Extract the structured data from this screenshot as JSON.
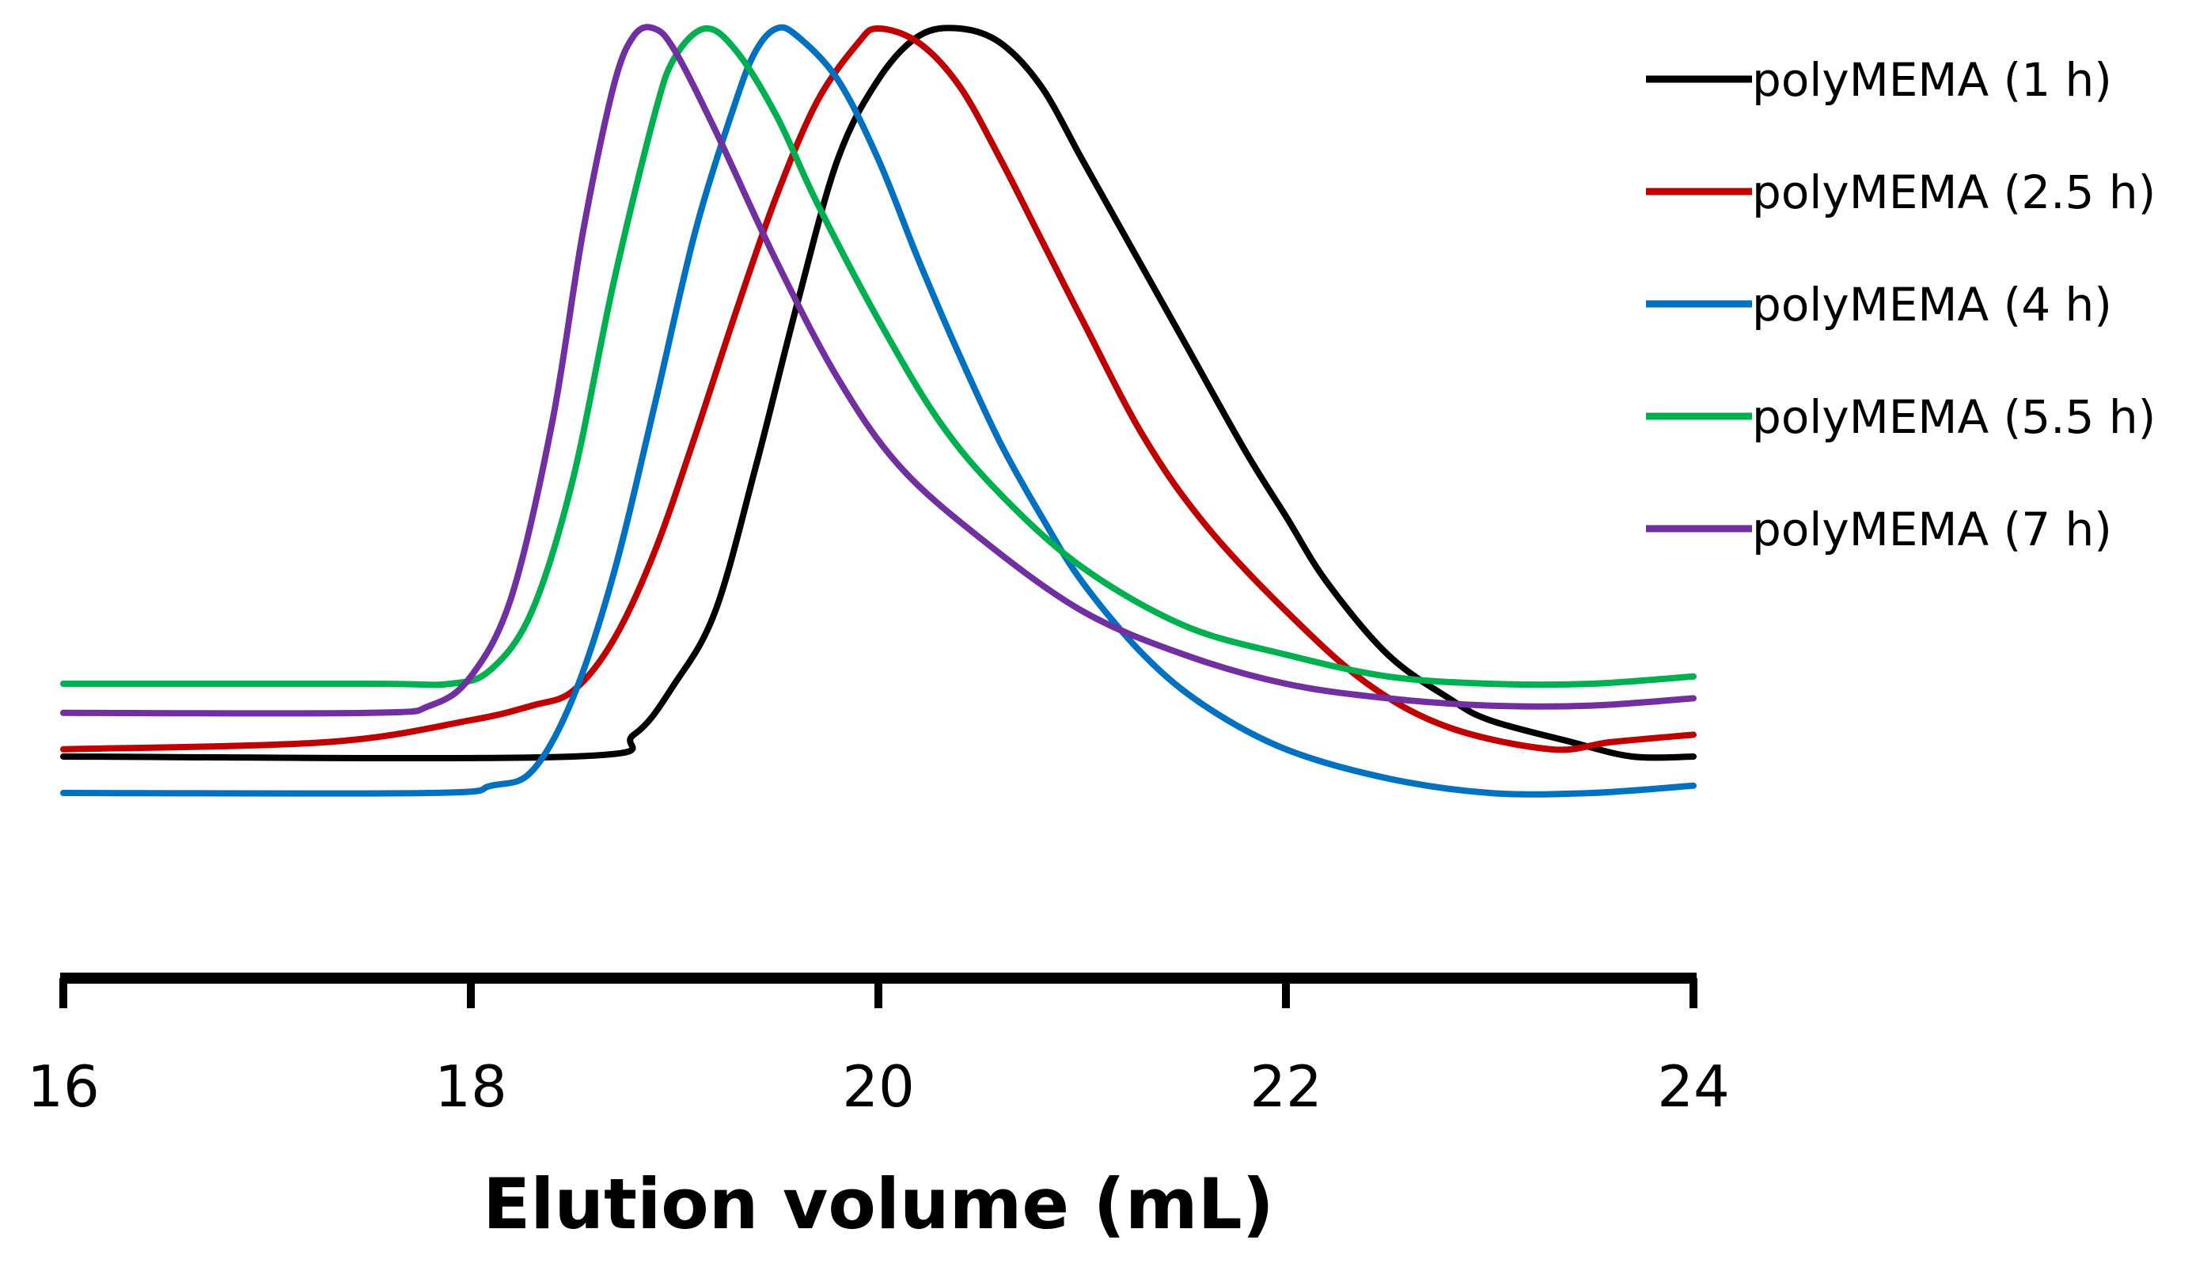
{
  "chart_data": {
    "type": "line",
    "title": "",
    "xlabel": "Elution volume (mL)",
    "ylabel": "",
    "xlim": [
      16,
      24
    ],
    "xticks": [
      16,
      18,
      20,
      22,
      24
    ],
    "xtick_labels": [
      "16",
      "18",
      "20",
      "22",
      "24"
    ],
    "ylim": [
      0,
      1.0
    ],
    "yaxis_visible": false,
    "grid": false,
    "legend_position": "top-right",
    "series": [
      {
        "name": "polyMEMA (1 h)",
        "color": "#000000",
        "points": [
          [
            16.0,
            0.0
          ],
          [
            18.5,
            0.0
          ],
          [
            18.8,
            0.03
          ],
          [
            19.0,
            0.1
          ],
          [
            19.2,
            0.2
          ],
          [
            19.4,
            0.4
          ],
          [
            19.6,
            0.62
          ],
          [
            19.8,
            0.82
          ],
          [
            20.0,
            0.93
          ],
          [
            20.2,
            0.99
          ],
          [
            20.4,
            1.0
          ],
          [
            20.6,
            0.98
          ],
          [
            20.8,
            0.92
          ],
          [
            21.0,
            0.82
          ],
          [
            21.2,
            0.72
          ],
          [
            21.5,
            0.57
          ],
          [
            21.8,
            0.42
          ],
          [
            22.0,
            0.33
          ],
          [
            22.2,
            0.24
          ],
          [
            22.5,
            0.14
          ],
          [
            22.8,
            0.08
          ],
          [
            23.0,
            0.05
          ],
          [
            23.4,
            0.02
          ],
          [
            23.7,
            0.0
          ],
          [
            24.0,
            0.0
          ]
        ]
      },
      {
        "name": "polyMEMA (2.5 h)",
        "color": "#c00000",
        "points": [
          [
            16.0,
            0.01
          ],
          [
            17.3,
            0.02
          ],
          [
            18.0,
            0.05
          ],
          [
            18.3,
            0.07
          ],
          [
            18.5,
            0.09
          ],
          [
            18.7,
            0.16
          ],
          [
            18.9,
            0.28
          ],
          [
            19.1,
            0.44
          ],
          [
            19.3,
            0.61
          ],
          [
            19.5,
            0.77
          ],
          [
            19.7,
            0.9
          ],
          [
            19.9,
            0.98
          ],
          [
            20.0,
            1.0
          ],
          [
            20.2,
            0.98
          ],
          [
            20.4,
            0.92
          ],
          [
            20.6,
            0.82
          ],
          [
            20.8,
            0.71
          ],
          [
            21.0,
            0.6
          ],
          [
            21.3,
            0.44
          ],
          [
            21.6,
            0.32
          ],
          [
            22.0,
            0.2
          ],
          [
            22.4,
            0.1
          ],
          [
            22.8,
            0.04
          ],
          [
            23.3,
            0.01
          ],
          [
            23.6,
            0.02
          ],
          [
            24.0,
            0.03
          ]
        ]
      },
      {
        "name": "polyMEMA (4 h)",
        "color": "#0070c0",
        "points": [
          [
            16.0,
            -0.05
          ],
          [
            17.8,
            -0.05
          ],
          [
            18.1,
            -0.04
          ],
          [
            18.3,
            -0.02
          ],
          [
            18.5,
            0.08
          ],
          [
            18.7,
            0.25
          ],
          [
            18.9,
            0.48
          ],
          [
            19.1,
            0.72
          ],
          [
            19.3,
            0.9
          ],
          [
            19.4,
            0.97
          ],
          [
            19.5,
            1.0
          ],
          [
            19.6,
            0.99
          ],
          [
            19.8,
            0.93
          ],
          [
            20.0,
            0.82
          ],
          [
            20.2,
            0.68
          ],
          [
            20.4,
            0.55
          ],
          [
            20.6,
            0.43
          ],
          [
            20.8,
            0.33
          ],
          [
            21.0,
            0.24
          ],
          [
            21.3,
            0.14
          ],
          [
            21.6,
            0.07
          ],
          [
            22.0,
            0.01
          ],
          [
            22.5,
            -0.03
          ],
          [
            23.0,
            -0.05
          ],
          [
            23.5,
            -0.05
          ],
          [
            24.0,
            -0.04
          ]
        ]
      },
      {
        "name": "polyMEMA (5.5 h)",
        "color": "#00b050",
        "points": [
          [
            16.0,
            0.1
          ],
          [
            17.5,
            0.1
          ],
          [
            17.9,
            0.1
          ],
          [
            18.1,
            0.12
          ],
          [
            18.3,
            0.2
          ],
          [
            18.5,
            0.38
          ],
          [
            18.7,
            0.65
          ],
          [
            18.9,
            0.88
          ],
          [
            19.0,
            0.96
          ],
          [
            19.15,
            1.0
          ],
          [
            19.3,
            0.97
          ],
          [
            19.5,
            0.88
          ],
          [
            19.7,
            0.76
          ],
          [
            20.0,
            0.6
          ],
          [
            20.3,
            0.46
          ],
          [
            20.6,
            0.36
          ],
          [
            21.0,
            0.26
          ],
          [
            21.5,
            0.18
          ],
          [
            22.0,
            0.14
          ],
          [
            22.5,
            0.11
          ],
          [
            23.0,
            0.1
          ],
          [
            23.5,
            0.1
          ],
          [
            24.0,
            0.11
          ]
        ]
      },
      {
        "name": "polyMEMA (7 h)",
        "color": "#7030a0",
        "points": [
          [
            16.0,
            0.06
          ],
          [
            17.5,
            0.06
          ],
          [
            17.8,
            0.07
          ],
          [
            18.0,
            0.11
          ],
          [
            18.2,
            0.22
          ],
          [
            18.4,
            0.46
          ],
          [
            18.55,
            0.72
          ],
          [
            18.7,
            0.92
          ],
          [
            18.8,
            0.99
          ],
          [
            18.9,
            1.0
          ],
          [
            19.0,
            0.97
          ],
          [
            19.2,
            0.86
          ],
          [
            19.5,
            0.68
          ],
          [
            19.8,
            0.52
          ],
          [
            20.1,
            0.4
          ],
          [
            20.5,
            0.3
          ],
          [
            21.0,
            0.2
          ],
          [
            21.5,
            0.14
          ],
          [
            22.0,
            0.1
          ],
          [
            22.5,
            0.08
          ],
          [
            23.0,
            0.07
          ],
          [
            23.5,
            0.07
          ],
          [
            24.0,
            0.08
          ]
        ]
      }
    ]
  }
}
